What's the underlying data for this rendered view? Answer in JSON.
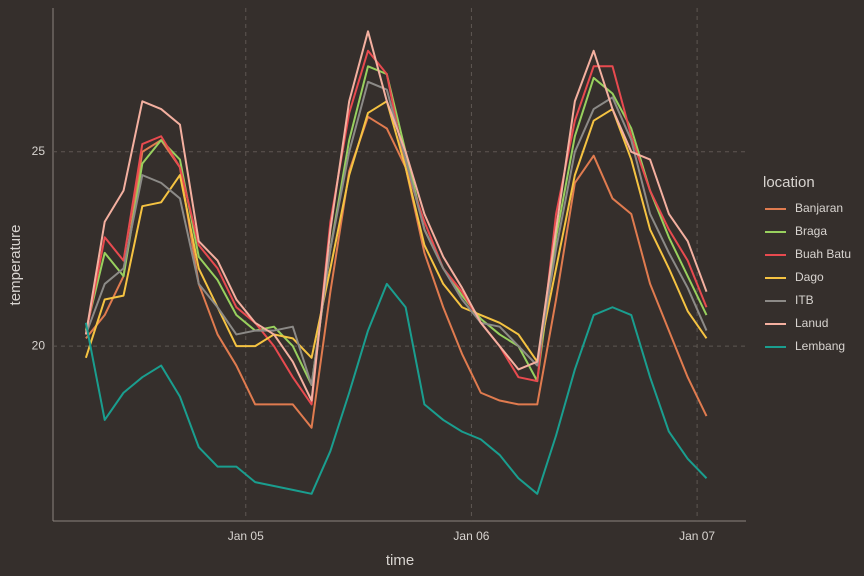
{
  "chart_data": {
    "type": "line",
    "xlabel": "time",
    "ylabel": "temperature",
    "legend_title": "location",
    "legend": "right",
    "grid": true,
    "x": [
      "01-04 07:00",
      "01-04 09:00",
      "01-04 11:00",
      "01-04 13:00",
      "01-04 15:00",
      "01-04 17:00",
      "01-04 19:00",
      "01-04 21:00",
      "01-04 23:00",
      "01-05 01:00",
      "01-05 03:00",
      "01-05 05:00",
      "01-05 07:00",
      "01-05 09:00",
      "01-05 11:00",
      "01-05 13:00",
      "01-05 15:00",
      "01-05 17:00",
      "01-05 19:00",
      "01-05 21:00",
      "01-05 23:00",
      "01-06 01:00",
      "01-06 03:00",
      "01-06 05:00",
      "01-06 07:00",
      "01-06 09:00",
      "01-06 11:00",
      "01-06 13:00",
      "01-06 15:00",
      "01-06 17:00",
      "01-06 19:00",
      "01-06 21:00",
      "01-06 23:00",
      "01-07 01:00"
    ],
    "xlim": [
      "01-04 03:30",
      "01-07 05:12"
    ],
    "xticks": [
      {
        "value": "01-05 00:00",
        "label": "Jan 05"
      },
      {
        "value": "01-06 00:00",
        "label": "Jan 06"
      },
      {
        "value": "01-07 00:00",
        "label": "Jan 07"
      }
    ],
    "ylim": [
      15.5,
      28.7
    ],
    "yticks": [
      20,
      25
    ],
    "series": [
      {
        "name": "Banjaran",
        "color": "#e07b4f",
        "values": [
          20.2,
          20.8,
          21.8,
          25.0,
          25.3,
          24.6,
          21.6,
          20.3,
          19.5,
          18.5,
          18.5,
          18.5,
          17.9,
          21.4,
          24.5,
          25.9,
          25.6,
          24.6,
          22.4,
          21.0,
          19.8,
          18.8,
          18.6,
          18.5,
          18.5,
          21.2,
          24.2,
          24.9,
          23.8,
          23.4,
          21.6,
          20.4,
          19.2,
          18.2
        ]
      },
      {
        "name": "Braga",
        "color": "#98d05e",
        "values": [
          20.4,
          22.4,
          21.8,
          24.7,
          25.3,
          24.8,
          22.3,
          21.7,
          20.8,
          20.4,
          20.5,
          20.0,
          19.0,
          22.5,
          25.3,
          27.2,
          27.0,
          25.0,
          23.0,
          22.0,
          21.3,
          20.7,
          20.3,
          20.0,
          19.1,
          22.8,
          25.4,
          26.9,
          26.5,
          25.6,
          24.0,
          22.8,
          21.8,
          20.8
        ]
      },
      {
        "name": "Buah Batu",
        "color": "#e84a4f",
        "values": [
          20.3,
          22.8,
          22.2,
          25.2,
          25.4,
          24.6,
          22.6,
          22.0,
          21.0,
          20.6,
          20.0,
          19.2,
          18.5,
          23.2,
          26.0,
          27.6,
          27.0,
          24.6,
          23.2,
          22.0,
          21.4,
          20.6,
          20.0,
          19.2,
          19.1,
          23.4,
          25.8,
          27.2,
          27.2,
          25.4,
          24.0,
          23.0,
          22.2,
          21.0
        ]
      },
      {
        "name": "Dago",
        "color": "#f5c342",
        "values": [
          19.7,
          21.2,
          21.3,
          23.6,
          23.7,
          24.4,
          22.0,
          21.0,
          20.0,
          20.0,
          20.3,
          20.2,
          19.7,
          22.0,
          24.4,
          26.0,
          26.3,
          24.6,
          22.6,
          21.6,
          21.0,
          20.8,
          20.6,
          20.3,
          19.6,
          22.0,
          24.4,
          25.8,
          26.1,
          24.8,
          23.0,
          22.0,
          20.9,
          20.2
        ]
      },
      {
        "name": "ITB",
        "color": "#8c8a87",
        "values": [
          20.3,
          21.6,
          22.0,
          24.4,
          24.2,
          23.8,
          21.6,
          21.0,
          20.3,
          20.4,
          20.4,
          20.5,
          19.0,
          22.5,
          25.0,
          26.8,
          26.6,
          24.8,
          23.0,
          22.0,
          21.2,
          20.6,
          20.5,
          20.0,
          19.5,
          22.5,
          25.0,
          26.1,
          26.4,
          25.3,
          23.4,
          22.4,
          21.5,
          20.4
        ]
      },
      {
        "name": "Lanud",
        "color": "#f4b0a0",
        "values": [
          20.3,
          23.2,
          24.0,
          26.3,
          26.1,
          25.7,
          22.7,
          22.2,
          21.2,
          20.6,
          20.3,
          19.6,
          18.6,
          23.0,
          26.3,
          28.1,
          26.3,
          25.0,
          23.4,
          22.3,
          21.5,
          20.6,
          20.0,
          19.4,
          19.6,
          23.0,
          26.3,
          27.6,
          26.1,
          25.0,
          24.8,
          23.4,
          22.7,
          21.4
        ]
      },
      {
        "name": "Lembang",
        "color": "#1a9e8f",
        "values": [
          20.6,
          18.1,
          18.8,
          19.2,
          19.5,
          18.7,
          17.4,
          16.9,
          16.9,
          16.5,
          16.4,
          16.3,
          16.2,
          17.3,
          18.8,
          20.4,
          21.6,
          21.0,
          18.5,
          18.1,
          17.8,
          17.6,
          17.2,
          16.6,
          16.2,
          17.7,
          19.4,
          20.8,
          21.0,
          20.8,
          19.2,
          17.8,
          17.1,
          16.6
        ]
      }
    ]
  }
}
